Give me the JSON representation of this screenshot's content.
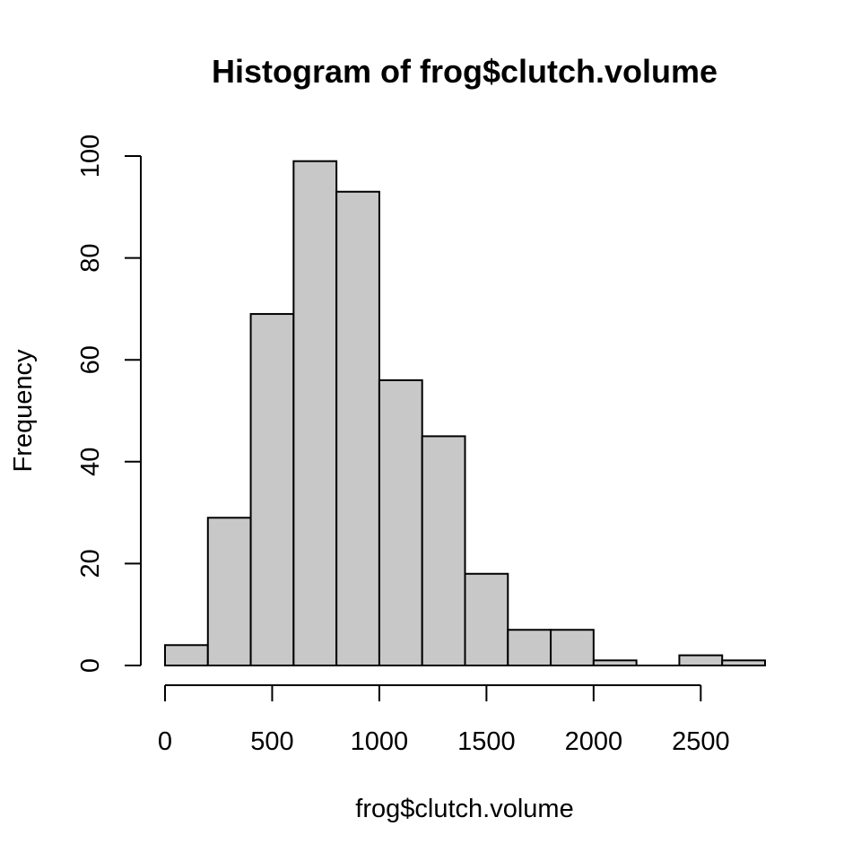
{
  "chart_data": {
    "type": "bar",
    "title": "Histogram of frog$clutch.volume",
    "xlabel": "frog$clutch.volume",
    "ylabel": "Frequency",
    "bin_edges": [
      0,
      200,
      400,
      600,
      800,
      1000,
      1200,
      1400,
      1600,
      1800,
      2000,
      2200,
      2400,
      2600,
      2800
    ],
    "values": [
      4,
      29,
      69,
      99,
      93,
      56,
      45,
      18,
      7,
      7,
      1,
      0,
      2,
      1
    ],
    "xlim": [
      0,
      2800
    ],
    "ylim": [
      0,
      100
    ],
    "x_ticks": [
      0,
      500,
      1000,
      1500,
      2000,
      2500
    ],
    "x_tick_labels": [
      "0",
      "500",
      "1000",
      "1500",
      "2000",
      "2500"
    ],
    "y_ticks": [
      0,
      20,
      40,
      60,
      80,
      100
    ],
    "y_tick_labels": [
      "0",
      "20",
      "40",
      "60",
      "80",
      "100"
    ],
    "grid": false,
    "bar_color": "#c8c8c8",
    "edge_color": "#000000"
  }
}
